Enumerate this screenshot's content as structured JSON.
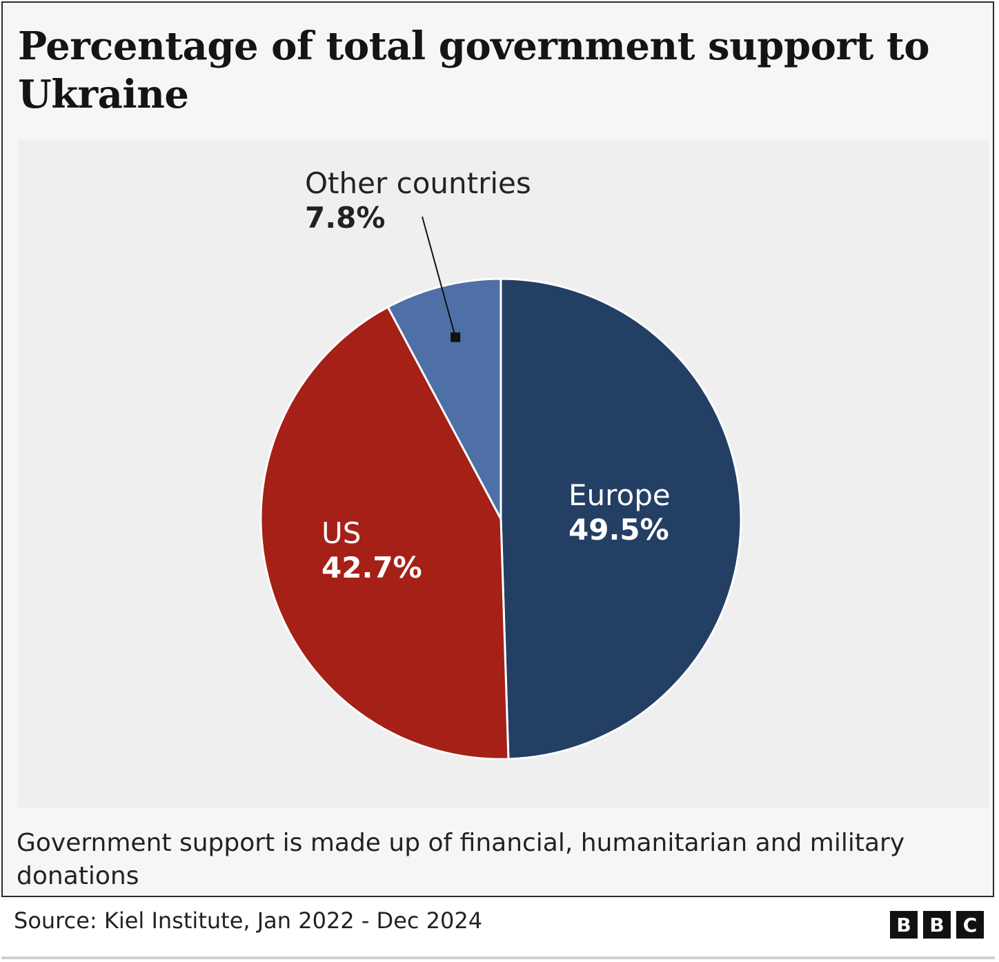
{
  "chart_data": {
    "type": "pie",
    "title": "Percentage of total government support to Ukraine",
    "categories": [
      "Europe",
      "US",
      "Other countries"
    ],
    "values": [
      49.5,
      42.7,
      7.8
    ],
    "value_labels": [
      "49.5%",
      "42.7%",
      "7.8%"
    ],
    "colors": [
      "#243f64",
      "#a52016",
      "#4e70a6"
    ],
    "start": "12 o'clock",
    "direction": "clockwise",
    "note": "Government support is made up of financial, humanitarian and military donations",
    "source": "Source: Kiel Institute, Jan 2022 - Dec 2024"
  },
  "branding": {
    "logo_letters": [
      "B",
      "B",
      "C"
    ],
    "logo_name": "bbc-logo"
  }
}
